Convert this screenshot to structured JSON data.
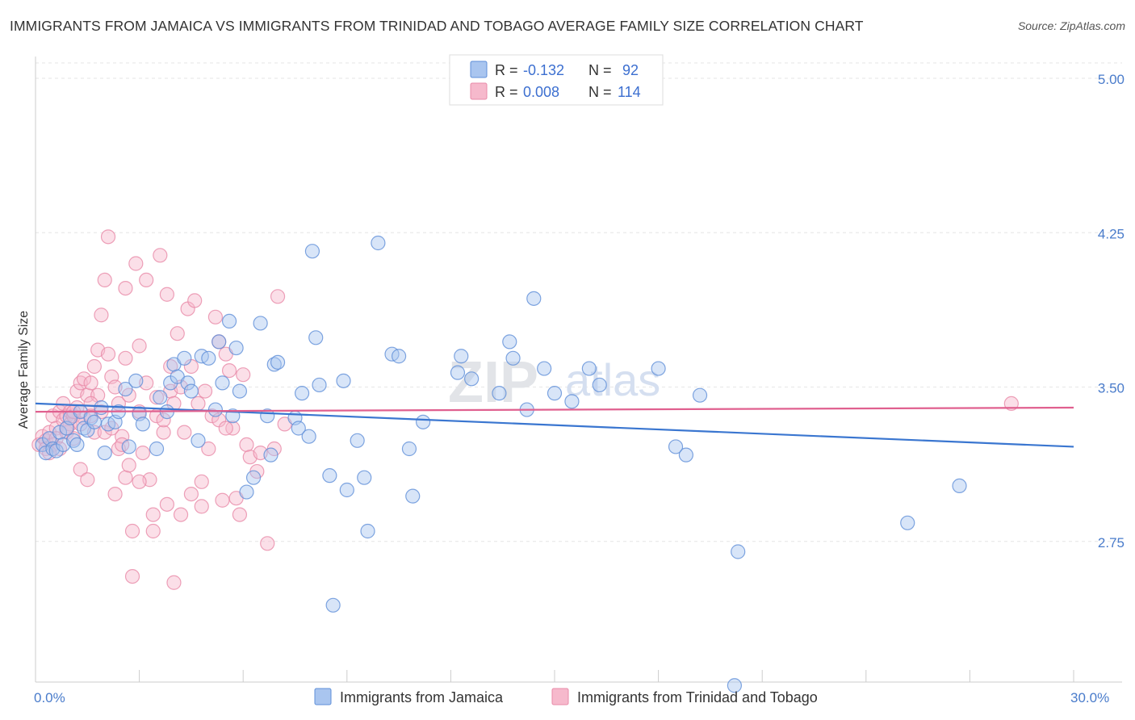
{
  "header": {
    "title": "IMMIGRANTS FROM JAMAICA VS IMMIGRANTS FROM TRINIDAD AND TOBAGO AVERAGE FAMILY SIZE CORRELATION CHART",
    "source": "Source: ZipAtlas.com"
  },
  "colors": {
    "jamaica_fill": "#a9c5ef",
    "jamaica_stroke": "#5f8fd8",
    "jamaica_line": "#3a76d0",
    "trinidad_fill": "#f6b9cc",
    "trinidad_stroke": "#e88aa8",
    "trinidad_line": "#e0608f",
    "tick_text": "#4a7ccb"
  },
  "watermark": {
    "zip": "ZIP",
    "atlas": "atlas"
  },
  "legend": {
    "rows": [
      {
        "r_label": "R =",
        "r_value": "-0.132",
        "n_label": "N =",
        "n_value": "92"
      },
      {
        "r_label": "R =",
        "r_value": "0.008",
        "n_label": "N =",
        "n_value": "114"
      }
    ]
  },
  "chart_data": {
    "type": "scatter",
    "title": "IMMIGRANTS FROM JAMAICA VS IMMIGRANTS FROM TRINIDAD AND TOBAGO AVERAGE FAMILY SIZE CORRELATION CHART",
    "ylabel": "Average Family Size",
    "xlabel": "",
    "xlim": [
      0,
      30
    ],
    "ylim": [
      2.0,
      5.0
    ],
    "x_tick_labels": [
      "0.0%",
      "30.0%"
    ],
    "y_ticks": [
      2.75,
      3.5,
      4.25,
      5.0
    ],
    "y_tick_labels": [
      "2.75",
      "3.50",
      "4.25",
      "5.00"
    ],
    "grid": "horizontal dashed",
    "legend_placement": "top-center",
    "series": [
      {
        "name": "Immigrants from Jamaica",
        "r": -0.132,
        "n": 92,
        "trend": {
          "x0": 0,
          "y0": 3.42,
          "x1": 30,
          "y1": 3.21
        },
        "points": [
          [
            0.2,
            3.22
          ],
          [
            0.3,
            3.18
          ],
          [
            0.4,
            3.25
          ],
          [
            0.5,
            3.2
          ],
          [
            0.6,
            3.19
          ],
          [
            0.7,
            3.28
          ],
          [
            0.8,
            3.22
          ],
          [
            0.9,
            3.3
          ],
          [
            1.0,
            3.35
          ],
          [
            1.1,
            3.24
          ],
          [
            1.2,
            3.22
          ],
          [
            1.3,
            3.38
          ],
          [
            1.4,
            3.3
          ],
          [
            1.5,
            3.29
          ],
          [
            1.6,
            3.35
          ],
          [
            1.7,
            3.33
          ],
          [
            1.9,
            3.4
          ],
          [
            2.0,
            3.18
          ],
          [
            2.1,
            3.32
          ],
          [
            2.3,
            3.33
          ],
          [
            2.4,
            3.38
          ],
          [
            2.6,
            3.49
          ],
          [
            2.7,
            3.21
          ],
          [
            2.9,
            3.53
          ],
          [
            3.0,
            3.37
          ],
          [
            3.1,
            3.32
          ],
          [
            3.5,
            3.2
          ],
          [
            3.6,
            3.45
          ],
          [
            3.8,
            3.38
          ],
          [
            3.9,
            3.52
          ],
          [
            4.0,
            3.61
          ],
          [
            4.1,
            3.55
          ],
          [
            4.3,
            3.64
          ],
          [
            4.4,
            3.52
          ],
          [
            4.5,
            3.48
          ],
          [
            4.7,
            3.24
          ],
          [
            4.8,
            3.65
          ],
          [
            5.0,
            3.64
          ],
          [
            5.2,
            3.39
          ],
          [
            5.3,
            3.72
          ],
          [
            5.4,
            3.52
          ],
          [
            5.6,
            3.82
          ],
          [
            5.7,
            3.36
          ],
          [
            5.8,
            3.69
          ],
          [
            5.9,
            3.48
          ],
          [
            6.1,
            2.99
          ],
          [
            6.3,
            3.06
          ],
          [
            6.5,
            3.81
          ],
          [
            6.7,
            3.36
          ],
          [
            6.8,
            3.17
          ],
          [
            6.9,
            3.61
          ],
          [
            7.0,
            3.62
          ],
          [
            7.5,
            3.35
          ],
          [
            7.6,
            3.3
          ],
          [
            7.7,
            3.47
          ],
          [
            7.9,
            3.26
          ],
          [
            8.0,
            4.16
          ],
          [
            8.1,
            3.74
          ],
          [
            8.2,
            3.51
          ],
          [
            8.5,
            3.07
          ],
          [
            8.9,
            3.53
          ],
          [
            9.0,
            3.0
          ],
          [
            9.3,
            3.24
          ],
          [
            9.5,
            3.06
          ],
          [
            9.6,
            2.8
          ],
          [
            9.9,
            4.2
          ],
          [
            10.3,
            3.66
          ],
          [
            10.5,
            3.65
          ],
          [
            10.8,
            3.2
          ],
          [
            10.9,
            2.97
          ],
          [
            11.2,
            3.33
          ],
          [
            12.2,
            3.57
          ],
          [
            12.3,
            3.65
          ],
          [
            12.6,
            3.54
          ],
          [
            13.4,
            3.47
          ],
          [
            13.7,
            3.72
          ],
          [
            13.8,
            3.64
          ],
          [
            14.2,
            3.39
          ],
          [
            14.4,
            3.93
          ],
          [
            14.7,
            3.59
          ],
          [
            15.0,
            3.47
          ],
          [
            15.5,
            3.43
          ],
          [
            16.0,
            3.59
          ],
          [
            16.3,
            3.51
          ],
          [
            18.0,
            3.59
          ],
          [
            18.5,
            3.21
          ],
          [
            18.8,
            3.17
          ],
          [
            19.2,
            3.46
          ],
          [
            20.3,
            2.7
          ],
          [
            20.2,
            2.05
          ],
          [
            25.2,
            2.84
          ],
          [
            26.7,
            3.02
          ],
          [
            8.6,
            2.44
          ]
        ]
      },
      {
        "name": "Immigrants from Trinidad and Tobago",
        "r": 0.008,
        "n": 114,
        "trend": {
          "x0": 0,
          "y0": 3.38,
          "x1": 30,
          "y1": 3.4
        },
        "points": [
          [
            0.1,
            3.22
          ],
          [
            0.2,
            3.26
          ],
          [
            0.3,
            3.24
          ],
          [
            0.3,
            3.2
          ],
          [
            0.4,
            3.28
          ],
          [
            0.5,
            3.22
          ],
          [
            0.5,
            3.36
          ],
          [
            0.6,
            3.3
          ],
          [
            0.6,
            3.25
          ],
          [
            0.7,
            3.38
          ],
          [
            0.7,
            3.2
          ],
          [
            0.8,
            3.34
          ],
          [
            0.8,
            3.42
          ],
          [
            0.9,
            3.36
          ],
          [
            0.9,
            3.28
          ],
          [
            1.0,
            3.38
          ],
          [
            1.0,
            3.32
          ],
          [
            1.1,
            3.36
          ],
          [
            1.1,
            3.25
          ],
          [
            1.2,
            3.4
          ],
          [
            1.2,
            3.48
          ],
          [
            1.3,
            3.52
          ],
          [
            1.3,
            3.1
          ],
          [
            1.4,
            3.35
          ],
          [
            1.4,
            3.54
          ],
          [
            1.5,
            3.05
          ],
          [
            1.5,
            3.46
          ],
          [
            1.6,
            3.52
          ],
          [
            1.6,
            3.36
          ],
          [
            1.7,
            3.28
          ],
          [
            1.7,
            3.6
          ],
          [
            1.8,
            3.68
          ],
          [
            1.8,
            3.46
          ],
          [
            1.9,
            3.38
          ],
          [
            1.9,
            3.85
          ],
          [
            2.0,
            4.02
          ],
          [
            2.0,
            3.28
          ],
          [
            2.1,
            4.23
          ],
          [
            2.1,
            3.66
          ],
          [
            2.2,
            3.55
          ],
          [
            2.3,
            2.98
          ],
          [
            2.3,
            3.5
          ],
          [
            2.4,
            3.42
          ],
          [
            2.4,
            3.2
          ],
          [
            2.5,
            3.26
          ],
          [
            2.6,
            3.98
          ],
          [
            2.6,
            3.64
          ],
          [
            2.7,
            3.46
          ],
          [
            2.8,
            2.8
          ],
          [
            2.8,
            2.58
          ],
          [
            2.9,
            4.1
          ],
          [
            3.0,
            3.7
          ],
          [
            3.0,
            3.38
          ],
          [
            3.1,
            3.18
          ],
          [
            3.2,
            4.02
          ],
          [
            3.2,
            3.52
          ],
          [
            3.3,
            3.05
          ],
          [
            3.4,
            2.8
          ],
          [
            3.5,
            3.45
          ],
          [
            3.5,
            3.36
          ],
          [
            3.6,
            4.14
          ],
          [
            3.7,
            3.28
          ],
          [
            3.8,
            3.95
          ],
          [
            3.9,
            3.48
          ],
          [
            4.0,
            3.42
          ],
          [
            4.1,
            3.76
          ],
          [
            4.2,
            3.5
          ],
          [
            4.3,
            3.28
          ],
          [
            4.4,
            3.88
          ],
          [
            4.5,
            2.98
          ],
          [
            4.6,
            3.92
          ],
          [
            4.7,
            3.42
          ],
          [
            4.8,
            3.04
          ],
          [
            4.9,
            3.48
          ],
          [
            5.0,
            3.2
          ],
          [
            5.1,
            3.36
          ],
          [
            5.2,
            3.84
          ],
          [
            5.3,
            3.34
          ],
          [
            5.4,
            2.95
          ],
          [
            5.5,
            3.66
          ],
          [
            5.6,
            3.58
          ],
          [
            5.7,
            3.3
          ],
          [
            5.8,
            2.96
          ],
          [
            5.9,
            2.88
          ],
          [
            6.0,
            3.56
          ],
          [
            6.1,
            3.22
          ],
          [
            6.2,
            3.16
          ],
          [
            6.4,
            3.09
          ],
          [
            6.5,
            3.18
          ],
          [
            6.7,
            2.74
          ],
          [
            6.9,
            3.2
          ],
          [
            7.0,
            3.94
          ],
          [
            7.2,
            3.32
          ],
          [
            4.0,
            2.55
          ],
          [
            3.4,
            2.88
          ],
          [
            2.6,
            3.06
          ],
          [
            3.8,
            2.93
          ],
          [
            4.5,
            3.6
          ],
          [
            4.8,
            2.92
          ],
          [
            5.3,
            3.72
          ],
          [
            5.5,
            3.3
          ],
          [
            2.2,
            3.3
          ],
          [
            2.5,
            3.22
          ],
          [
            1.1,
            3.38
          ],
          [
            0.4,
            3.18
          ],
          [
            1.6,
            3.42
          ],
          [
            2.7,
            3.12
          ],
          [
            3.0,
            3.04
          ],
          [
            3.7,
            3.34
          ],
          [
            4.2,
            2.88
          ],
          [
            28.2,
            3.42
          ],
          [
            3.9,
            3.6
          ],
          [
            1.3,
            3.32
          ],
          [
            0.9,
            3.3
          ]
        ]
      }
    ]
  },
  "bottom_legend": {
    "items": [
      {
        "label": "Immigrants from Jamaica"
      },
      {
        "label": "Immigrants from Trinidad and Tobago"
      }
    ]
  }
}
